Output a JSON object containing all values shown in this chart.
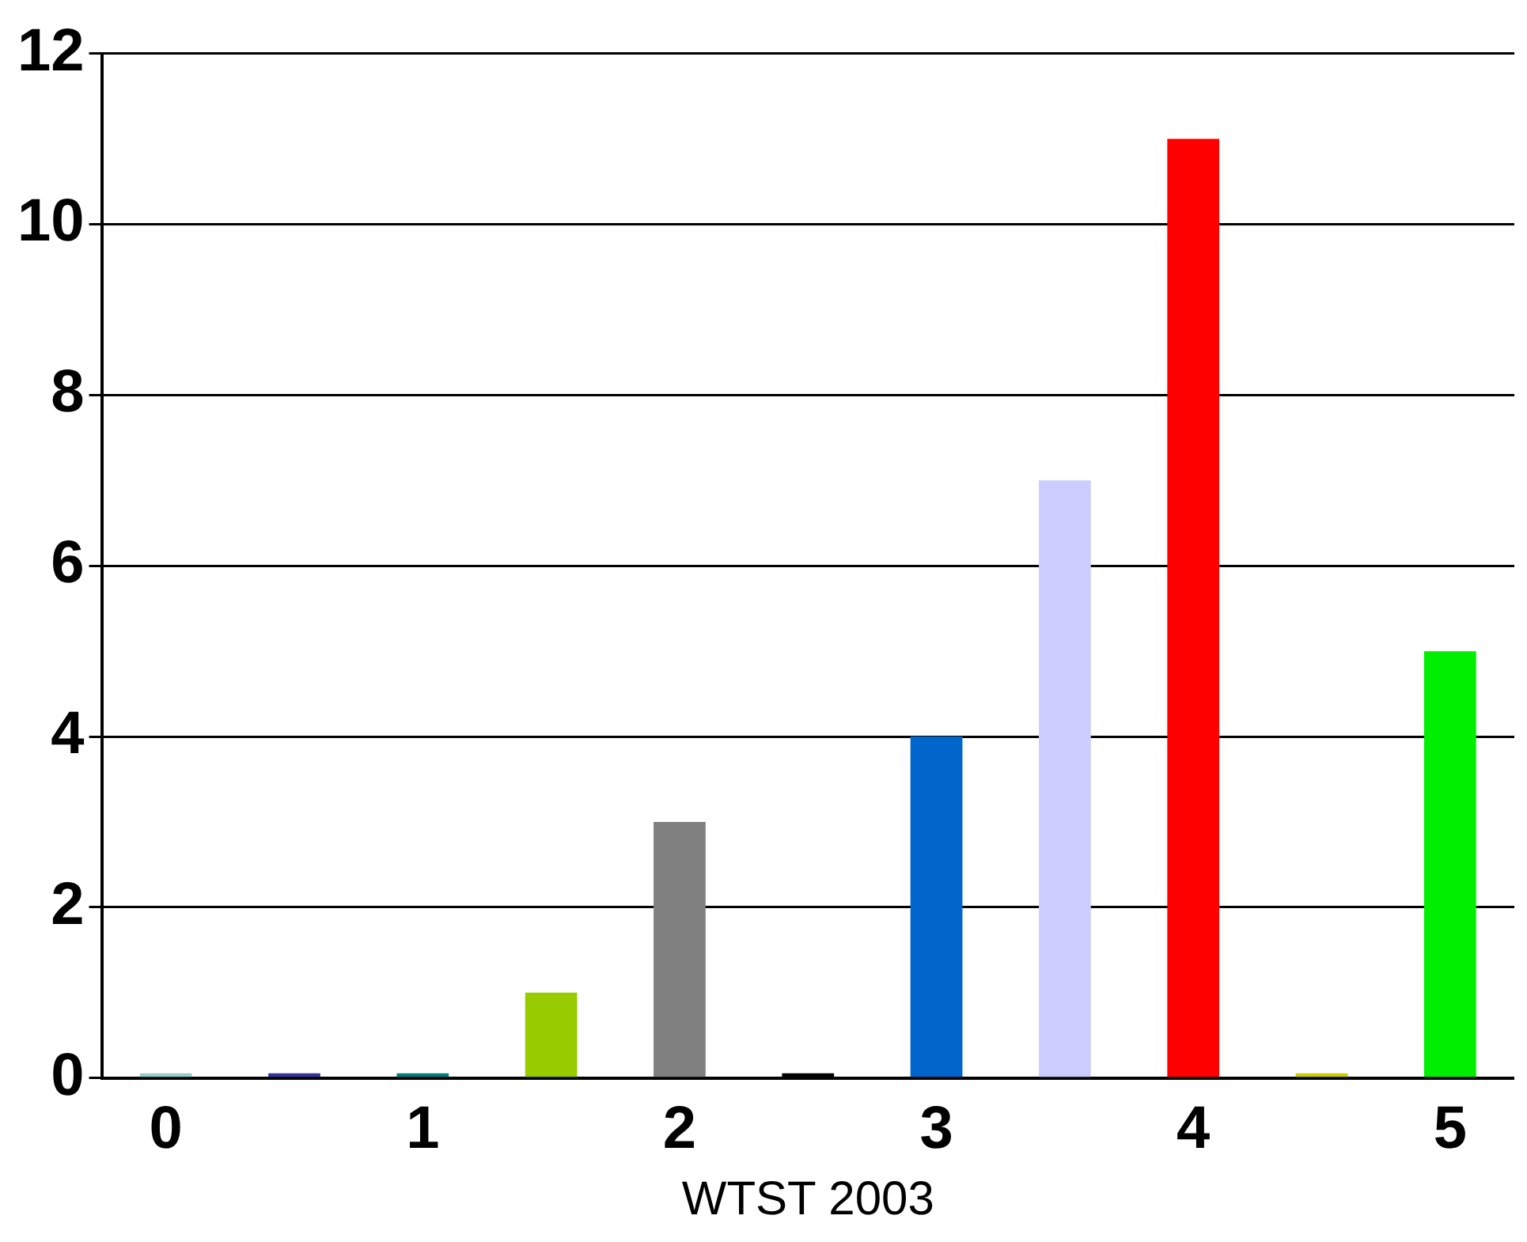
{
  "chart_data": {
    "type": "bar",
    "xlabel": "WTST 2003",
    "categories": [
      "0",
      null,
      "1",
      null,
      "2",
      null,
      "3",
      null,
      "4",
      null,
      "5"
    ],
    "values": [
      0,
      0,
      0,
      1,
      3,
      0,
      4,
      7,
      11,
      0,
      5
    ],
    "colors": [
      "#99cccc",
      "#333399",
      "#008080",
      "#99cc00",
      "#808080",
      "#000000",
      "#0066cc",
      "#ccccff",
      "#ff0000",
      "#cccc00",
      "#00ee00"
    ],
    "ylim": [
      0,
      12
    ],
    "yticks": [
      0,
      2,
      4,
      6,
      8,
      10,
      12
    ],
    "grid": "y",
    "legend": false
  }
}
